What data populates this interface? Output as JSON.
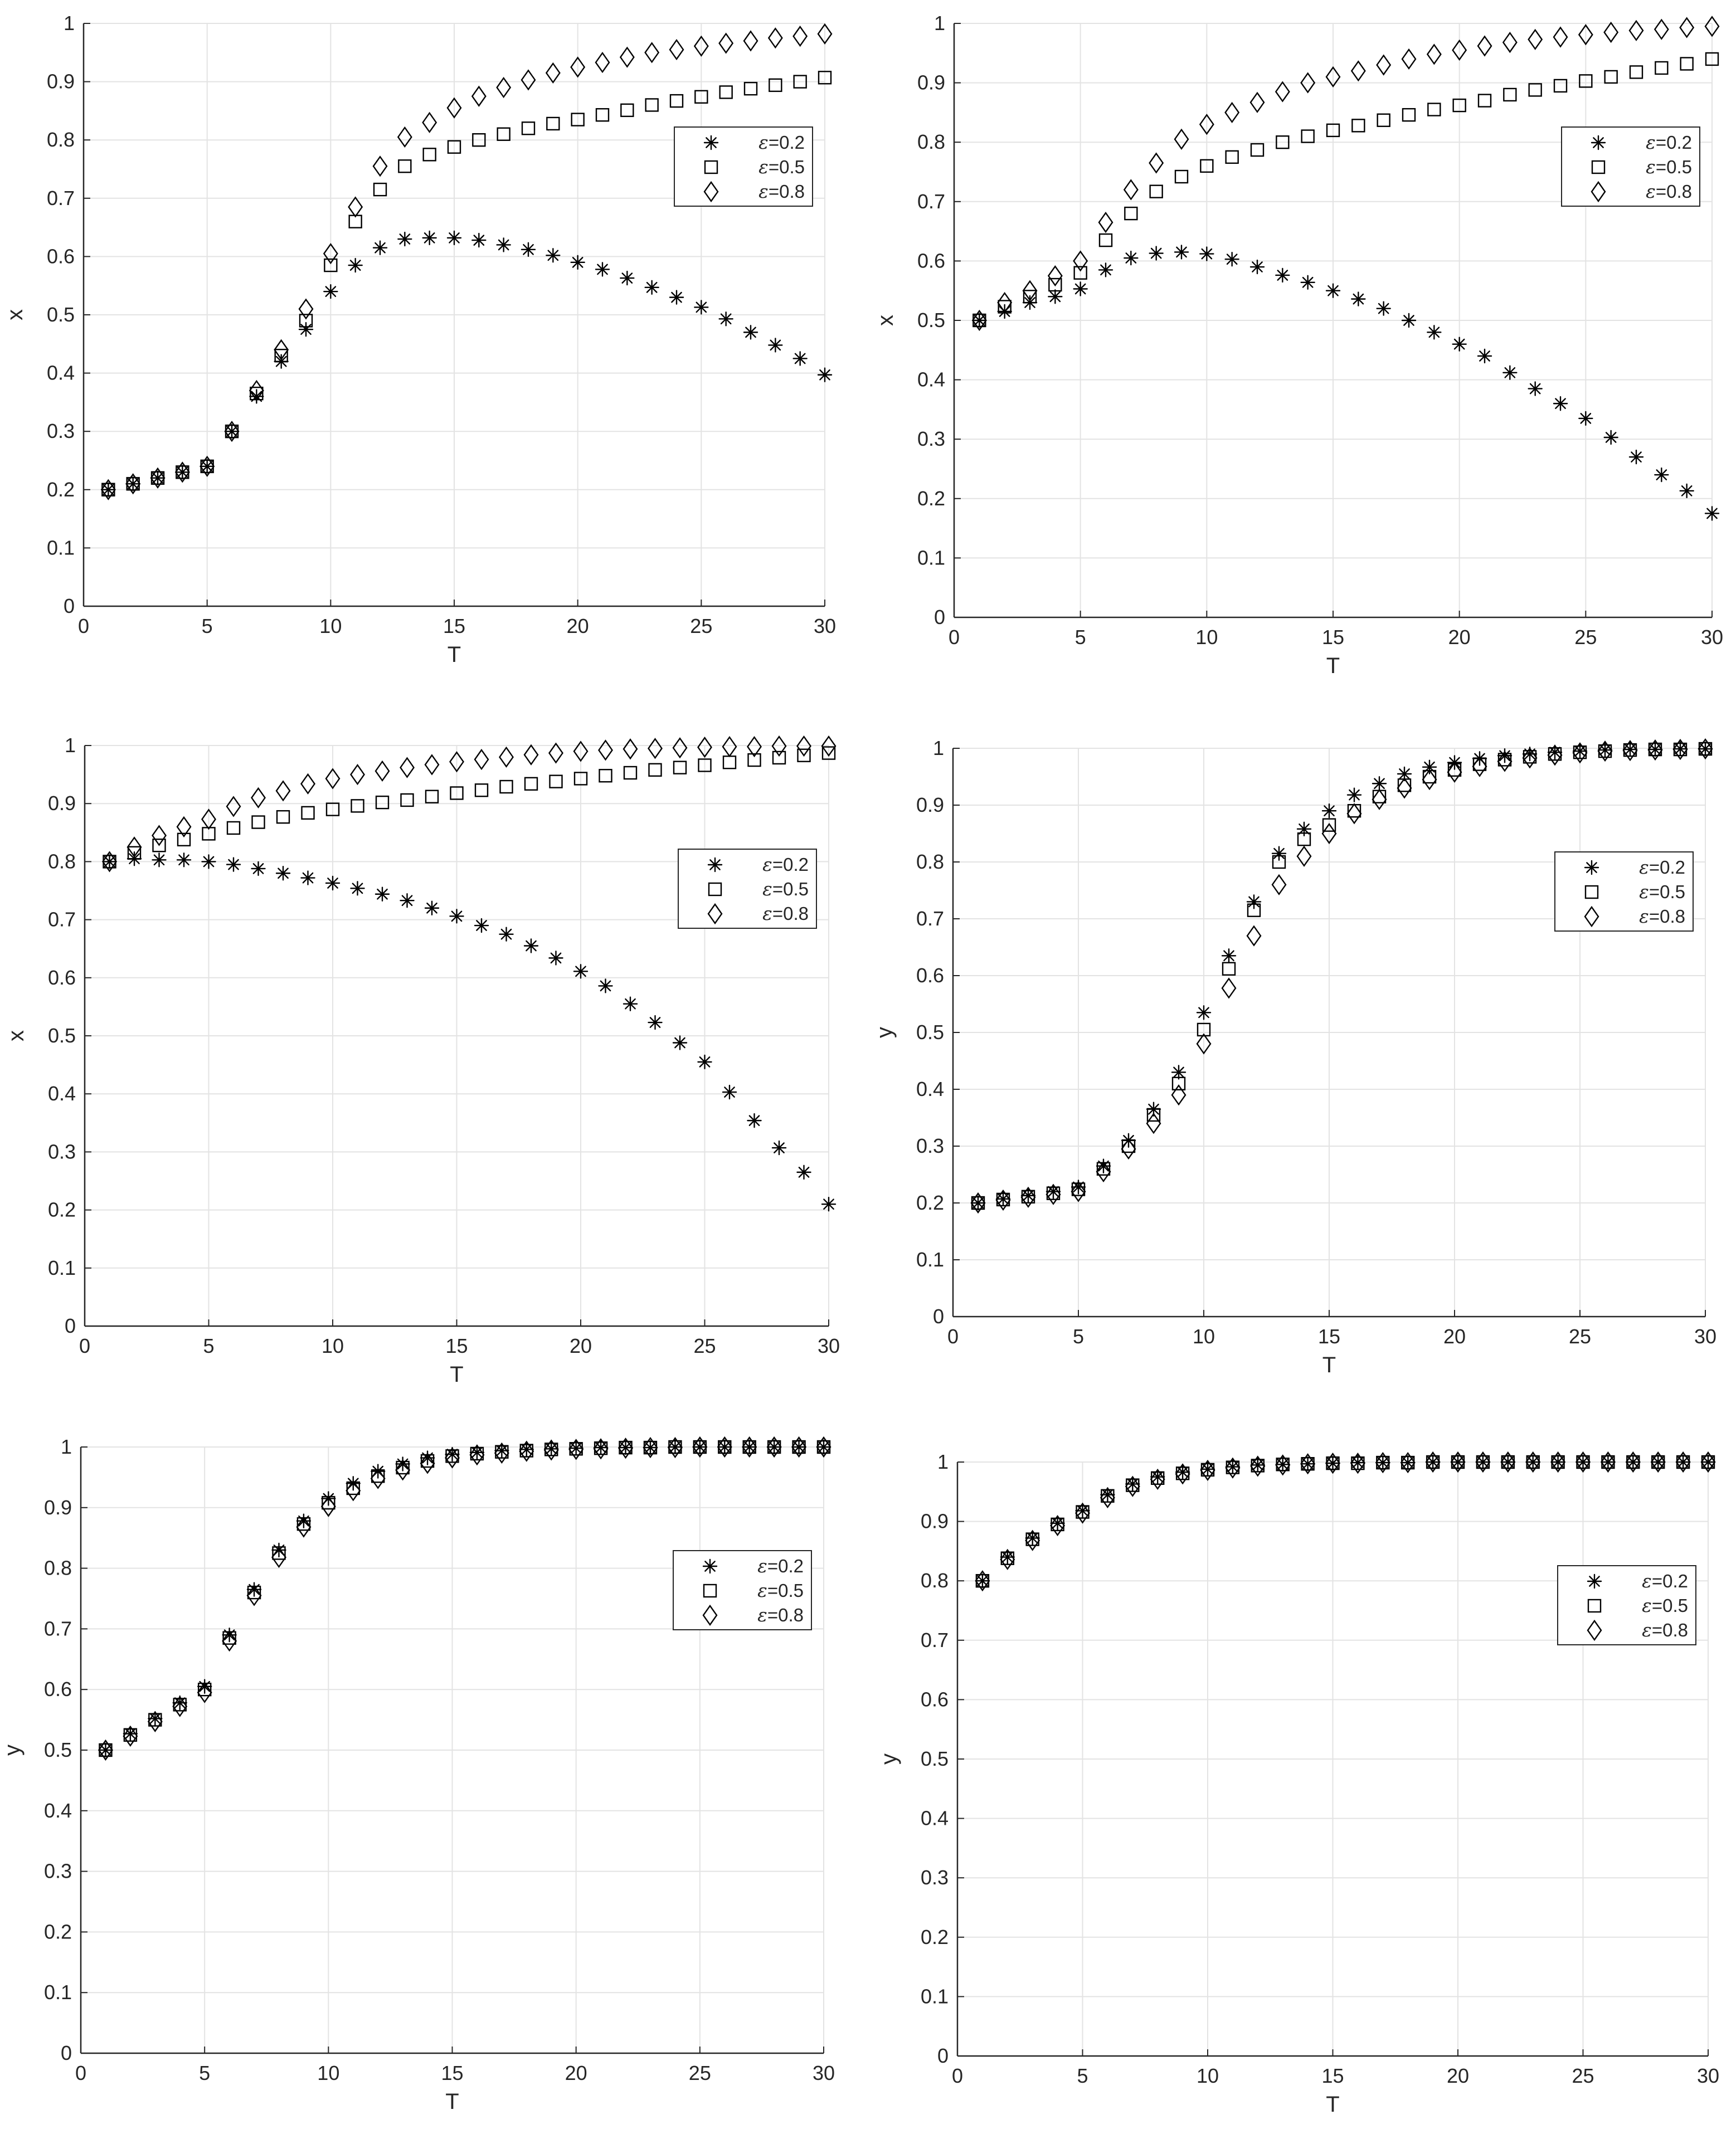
{
  "chart_data": [
    {
      "type": "scatter",
      "xlabel": "T",
      "ylabel": "x",
      "xlim": [
        0,
        30
      ],
      "ylim": [
        0,
        1
      ],
      "xticks": [
        "0",
        "5",
        "10",
        "15",
        "20",
        "25",
        "30"
      ],
      "yticks": [
        "0",
        "0.1",
        "0.2",
        "0.3",
        "0.4",
        "0.5",
        "0.6",
        "0.7",
        "0.8",
        "0.9",
        "1"
      ],
      "grid": true,
      "legend_position": "top-right",
      "x": [
        1,
        2,
        3,
        4,
        5,
        6,
        7,
        8,
        9,
        10,
        11,
        12,
        13,
        14,
        15,
        16,
        17,
        18,
        19,
        20,
        21,
        22,
        23,
        24,
        25,
        26,
        27,
        28,
        29,
        30
      ],
      "series": [
        {
          "name": "ε=0.2",
          "eps_symbol": "ε",
          "eps_value": "=0.2",
          "marker": "asterisk",
          "values": [
            0.2,
            0.21,
            0.22,
            0.23,
            0.24,
            0.3,
            0.36,
            0.42,
            0.475,
            0.54,
            0.585,
            0.615,
            0.63,
            0.632,
            0.632,
            0.628,
            0.62,
            0.612,
            0.602,
            0.59,
            0.578,
            0.563,
            0.547,
            0.53,
            0.513,
            0.493,
            0.47,
            0.448,
            0.425,
            0.397
          ]
        },
        {
          "name": "ε=0.5",
          "eps_symbol": "ε",
          "eps_value": "=0.5",
          "marker": "square",
          "values": [
            0.2,
            0.21,
            0.22,
            0.23,
            0.24,
            0.3,
            0.365,
            0.43,
            0.49,
            0.585,
            0.66,
            0.715,
            0.755,
            0.775,
            0.788,
            0.8,
            0.81,
            0.82,
            0.828,
            0.835,
            0.843,
            0.851,
            0.86,
            0.867,
            0.874,
            0.882,
            0.888,
            0.894,
            0.9,
            0.907
          ]
        },
        {
          "name": "ε=0.8",
          "eps_symbol": "ε",
          "eps_value": "=0.8",
          "marker": "diamond",
          "values": [
            0.2,
            0.21,
            0.22,
            0.23,
            0.24,
            0.3,
            0.37,
            0.44,
            0.51,
            0.605,
            0.685,
            0.755,
            0.805,
            0.83,
            0.855,
            0.875,
            0.89,
            0.903,
            0.915,
            0.925,
            0.933,
            0.942,
            0.95,
            0.955,
            0.961,
            0.966,
            0.97,
            0.975,
            0.978,
            0.982
          ]
        }
      ]
    },
    {
      "type": "scatter",
      "xlabel": "T",
      "ylabel": "x",
      "xlim": [
        0,
        30
      ],
      "ylim": [
        0,
        1
      ],
      "xticks": [
        "0",
        "5",
        "10",
        "15",
        "20",
        "25",
        "30"
      ],
      "yticks": [
        "0",
        "0.1",
        "0.2",
        "0.3",
        "0.4",
        "0.5",
        "0.6",
        "0.7",
        "0.8",
        "0.9",
        "1"
      ],
      "grid": true,
      "legend_position": "top-right",
      "x": [
        1,
        2,
        3,
        4,
        5,
        6,
        7,
        8,
        9,
        10,
        11,
        12,
        13,
        14,
        15,
        16,
        17,
        18,
        19,
        20,
        21,
        22,
        23,
        24,
        25,
        26,
        27,
        28,
        29,
        30
      ],
      "series": [
        {
          "name": "ε=0.2",
          "eps_symbol": "ε",
          "eps_value": "=0.2",
          "marker": "asterisk",
          "values": [
            0.5,
            0.515,
            0.53,
            0.54,
            0.553,
            0.585,
            0.605,
            0.613,
            0.615,
            0.612,
            0.603,
            0.59,
            0.576,
            0.564,
            0.55,
            0.536,
            0.52,
            0.5,
            0.48,
            0.46,
            0.44,
            0.412,
            0.385,
            0.36,
            0.335,
            0.303,
            0.27,
            0.24,
            0.213,
            0.175
          ]
        },
        {
          "name": "ε=0.5",
          "eps_symbol": "ε",
          "eps_value": "=0.5",
          "marker": "square",
          "values": [
            0.5,
            0.523,
            0.54,
            0.56,
            0.58,
            0.635,
            0.68,
            0.717,
            0.742,
            0.76,
            0.775,
            0.787,
            0.8,
            0.81,
            0.82,
            0.828,
            0.837,
            0.846,
            0.855,
            0.862,
            0.87,
            0.88,
            0.888,
            0.895,
            0.903,
            0.91,
            0.918,
            0.925,
            0.932,
            0.94
          ]
        },
        {
          "name": "ε=0.8",
          "eps_symbol": "ε",
          "eps_value": "=0.8",
          "marker": "diamond",
          "values": [
            0.5,
            0.53,
            0.55,
            0.575,
            0.6,
            0.665,
            0.72,
            0.765,
            0.805,
            0.83,
            0.85,
            0.867,
            0.885,
            0.9,
            0.91,
            0.92,
            0.93,
            0.94,
            0.948,
            0.955,
            0.962,
            0.968,
            0.973,
            0.977,
            0.981,
            0.985,
            0.988,
            0.99,
            0.993,
            0.995
          ]
        }
      ]
    },
    {
      "type": "scatter",
      "xlabel": "T",
      "ylabel": "x",
      "xlim": [
        0,
        30
      ],
      "ylim": [
        0,
        1
      ],
      "xticks": [
        "0",
        "5",
        "10",
        "15",
        "20",
        "25",
        "30"
      ],
      "yticks": [
        "0",
        "0.1",
        "0.2",
        "0.3",
        "0.4",
        "0.5",
        "0.6",
        "0.7",
        "0.8",
        "0.9",
        "1"
      ],
      "grid": true,
      "legend_position": "top-right",
      "x": [
        1,
        2,
        3,
        4,
        5,
        6,
        7,
        8,
        9,
        10,
        11,
        12,
        13,
        14,
        15,
        16,
        17,
        18,
        19,
        20,
        21,
        22,
        23,
        24,
        25,
        26,
        27,
        28,
        29,
        30
      ],
      "series": [
        {
          "name": "ε=0.2",
          "eps_symbol": "ε",
          "eps_value": "=0.2",
          "marker": "asterisk",
          "values": [
            0.8,
            0.805,
            0.803,
            0.803,
            0.8,
            0.795,
            0.788,
            0.78,
            0.772,
            0.763,
            0.754,
            0.744,
            0.733,
            0.72,
            0.706,
            0.69,
            0.675,
            0.655,
            0.634,
            0.611,
            0.586,
            0.555,
            0.523,
            0.488,
            0.455,
            0.403,
            0.354,
            0.307,
            0.265,
            0.21
          ]
        },
        {
          "name": "ε=0.5",
          "eps_symbol": "ε",
          "eps_value": "=0.5",
          "marker": "square",
          "values": [
            0.8,
            0.815,
            0.828,
            0.838,
            0.848,
            0.858,
            0.868,
            0.877,
            0.884,
            0.89,
            0.896,
            0.902,
            0.906,
            0.912,
            0.918,
            0.923,
            0.929,
            0.934,
            0.938,
            0.943,
            0.948,
            0.953,
            0.958,
            0.962,
            0.966,
            0.971,
            0.975,
            0.979,
            0.983,
            0.987
          ]
        },
        {
          "name": "ε=0.8",
          "eps_symbol": "ε",
          "eps_value": "=0.8",
          "marker": "diamond",
          "values": [
            0.8,
            0.825,
            0.845,
            0.86,
            0.873,
            0.895,
            0.91,
            0.922,
            0.934,
            0.943,
            0.95,
            0.956,
            0.962,
            0.967,
            0.972,
            0.976,
            0.98,
            0.984,
            0.987,
            0.99,
            0.992,
            0.994,
            0.995,
            0.996,
            0.997,
            0.998,
            0.998,
            0.999,
            0.999,
            0.999
          ]
        }
      ]
    },
    {
      "type": "scatter",
      "xlabel": "T",
      "ylabel": "y",
      "xlim": [
        0,
        30
      ],
      "ylim": [
        0,
        1
      ],
      "xticks": [
        "0",
        "5",
        "10",
        "15",
        "20",
        "25",
        "30"
      ],
      "yticks": [
        "0",
        "0.1",
        "0.2",
        "0.3",
        "0.4",
        "0.5",
        "0.6",
        "0.7",
        "0.8",
        "0.9",
        "1"
      ],
      "grid": true,
      "legend_position": "top-right",
      "x": [
        1,
        2,
        3,
        4,
        5,
        6,
        7,
        8,
        9,
        10,
        11,
        12,
        13,
        14,
        15,
        16,
        17,
        18,
        19,
        20,
        21,
        22,
        23,
        24,
        25,
        26,
        27,
        28,
        29,
        30
      ],
      "series": [
        {
          "name": "ε=0.2",
          "eps_symbol": "ε",
          "eps_value": "=0.2",
          "marker": "asterisk",
          "values": [
            0.2,
            0.207,
            0.213,
            0.22,
            0.228,
            0.265,
            0.31,
            0.365,
            0.43,
            0.535,
            0.635,
            0.73,
            0.815,
            0.858,
            0.89,
            0.918,
            0.938,
            0.955,
            0.967,
            0.975,
            0.982,
            0.987,
            0.99,
            0.993,
            0.995,
            0.997,
            0.998,
            0.998,
            0.999,
            0.999
          ]
        },
        {
          "name": "ε=0.5",
          "eps_symbol": "ε",
          "eps_value": "=0.5",
          "marker": "square",
          "values": [
            0.2,
            0.206,
            0.211,
            0.217,
            0.224,
            0.26,
            0.3,
            0.355,
            0.41,
            0.505,
            0.612,
            0.715,
            0.8,
            0.84,
            0.865,
            0.89,
            0.915,
            0.935,
            0.95,
            0.962,
            0.972,
            0.98,
            0.985,
            0.99,
            0.993,
            0.995,
            0.997,
            0.998,
            0.998,
            0.999
          ]
        },
        {
          "name": "ε=0.8",
          "eps_symbol": "ε",
          "eps_value": "=0.8",
          "marker": "diamond",
          "values": [
            0.2,
            0.205,
            0.21,
            0.215,
            0.22,
            0.255,
            0.295,
            0.34,
            0.39,
            0.48,
            0.578,
            0.67,
            0.76,
            0.81,
            0.85,
            0.885,
            0.91,
            0.93,
            0.945,
            0.958,
            0.968,
            0.977,
            0.983,
            0.988,
            0.992,
            0.995,
            0.996,
            0.997,
            0.998,
            0.999
          ]
        }
      ]
    },
    {
      "type": "scatter",
      "xlabel": "T",
      "ylabel": "y",
      "xlim": [
        0,
        30
      ],
      "ylim": [
        0,
        1
      ],
      "xticks": [
        "0",
        "5",
        "10",
        "15",
        "20",
        "25",
        "30"
      ],
      "yticks": [
        "0",
        "0.1",
        "0.2",
        "0.3",
        "0.4",
        "0.5",
        "0.6",
        "0.7",
        "0.8",
        "0.9",
        "1"
      ],
      "grid": true,
      "legend_position": "top-right",
      "x": [
        1,
        2,
        3,
        4,
        5,
        6,
        7,
        8,
        9,
        10,
        11,
        12,
        13,
        14,
        15,
        16,
        17,
        18,
        19,
        20,
        21,
        22,
        23,
        24,
        25,
        26,
        27,
        28,
        29,
        30
      ],
      "series": [
        {
          "name": "ε=0.2",
          "eps_symbol": "ε",
          "eps_value": "=0.2",
          "marker": "asterisk",
          "values": [
            0.5,
            0.527,
            0.552,
            0.578,
            0.605,
            0.69,
            0.765,
            0.83,
            0.878,
            0.915,
            0.94,
            0.96,
            0.972,
            0.982,
            0.988,
            0.991,
            0.994,
            0.996,
            0.997,
            0.998,
            0.999,
            0.999,
            0.999,
            1.0,
            1.0,
            1.0,
            1.0,
            1.0,
            1.0,
            1.0
          ]
        },
        {
          "name": "ε=0.5",
          "eps_symbol": "ε",
          "eps_value": "=0.5",
          "marker": "square",
          "values": [
            0.5,
            0.525,
            0.55,
            0.575,
            0.6,
            0.685,
            0.76,
            0.825,
            0.873,
            0.908,
            0.932,
            0.952,
            0.966,
            0.977,
            0.985,
            0.989,
            0.992,
            0.994,
            0.996,
            0.997,
            0.998,
            0.999,
            0.999,
            1.0,
            1.0,
            1.0,
            1.0,
            1.0,
            1.0,
            1.0
          ]
        },
        {
          "name": "ε=0.8",
          "eps_symbol": "ε",
          "eps_value": "=0.8",
          "marker": "diamond",
          "values": [
            0.5,
            0.523,
            0.547,
            0.572,
            0.595,
            0.68,
            0.755,
            0.818,
            0.868,
            0.902,
            0.928,
            0.948,
            0.962,
            0.973,
            0.982,
            0.987,
            0.99,
            0.993,
            0.995,
            0.996,
            0.997,
            0.998,
            0.999,
            0.999,
            1.0,
            1.0,
            1.0,
            1.0,
            1.0,
            1.0
          ]
        }
      ]
    },
    {
      "type": "scatter",
      "xlabel": "T",
      "ylabel": "y",
      "xlim": [
        0,
        30
      ],
      "ylim": [
        0,
        1
      ],
      "xticks": [
        "0",
        "5",
        "10",
        "15",
        "20",
        "25",
        "30"
      ],
      "yticks": [
        "0",
        "0.1",
        "0.2",
        "0.3",
        "0.4",
        "0.5",
        "0.6",
        "0.7",
        "0.8",
        "0.9",
        "1"
      ],
      "grid": true,
      "legend_position": "top-right",
      "x": [
        1,
        2,
        3,
        4,
        5,
        6,
        7,
        8,
        9,
        10,
        11,
        12,
        13,
        14,
        15,
        16,
        17,
        18,
        19,
        20,
        21,
        22,
        23,
        24,
        25,
        26,
        27,
        28,
        29,
        30
      ],
      "series": [
        {
          "name": "ε=0.2",
          "eps_symbol": "ε",
          "eps_value": "=0.2",
          "marker": "asterisk",
          "values": [
            0.8,
            0.84,
            0.872,
            0.897,
            0.918,
            0.945,
            0.963,
            0.975,
            0.983,
            0.988,
            0.992,
            0.995,
            0.996,
            0.997,
            0.998,
            0.999,
            0.999,
            0.999,
            1.0,
            1.0,
            1.0,
            1.0,
            1.0,
            1.0,
            1.0,
            1.0,
            1.0,
            1.0,
            1.0,
            1.0
          ]
        },
        {
          "name": "ε=0.5",
          "eps_symbol": "ε",
          "eps_value": "=0.5",
          "marker": "square",
          "values": [
            0.8,
            0.838,
            0.87,
            0.895,
            0.916,
            0.943,
            0.961,
            0.973,
            0.981,
            0.987,
            0.991,
            0.994,
            0.996,
            0.997,
            0.998,
            0.998,
            0.999,
            0.999,
            1.0,
            1.0,
            1.0,
            1.0,
            1.0,
            1.0,
            1.0,
            1.0,
            1.0,
            1.0,
            1.0,
            1.0
          ]
        },
        {
          "name": "ε=0.8",
          "eps_symbol": "ε",
          "eps_value": "=0.8",
          "marker": "diamond",
          "values": [
            0.8,
            0.836,
            0.868,
            0.893,
            0.914,
            0.94,
            0.959,
            0.971,
            0.98,
            0.986,
            0.99,
            0.993,
            0.995,
            0.997,
            0.998,
            0.998,
            0.999,
            0.999,
            1.0,
            1.0,
            1.0,
            1.0,
            1.0,
            1.0,
            1.0,
            1.0,
            1.0,
            1.0,
            1.0,
            1.0
          ]
        }
      ]
    }
  ]
}
